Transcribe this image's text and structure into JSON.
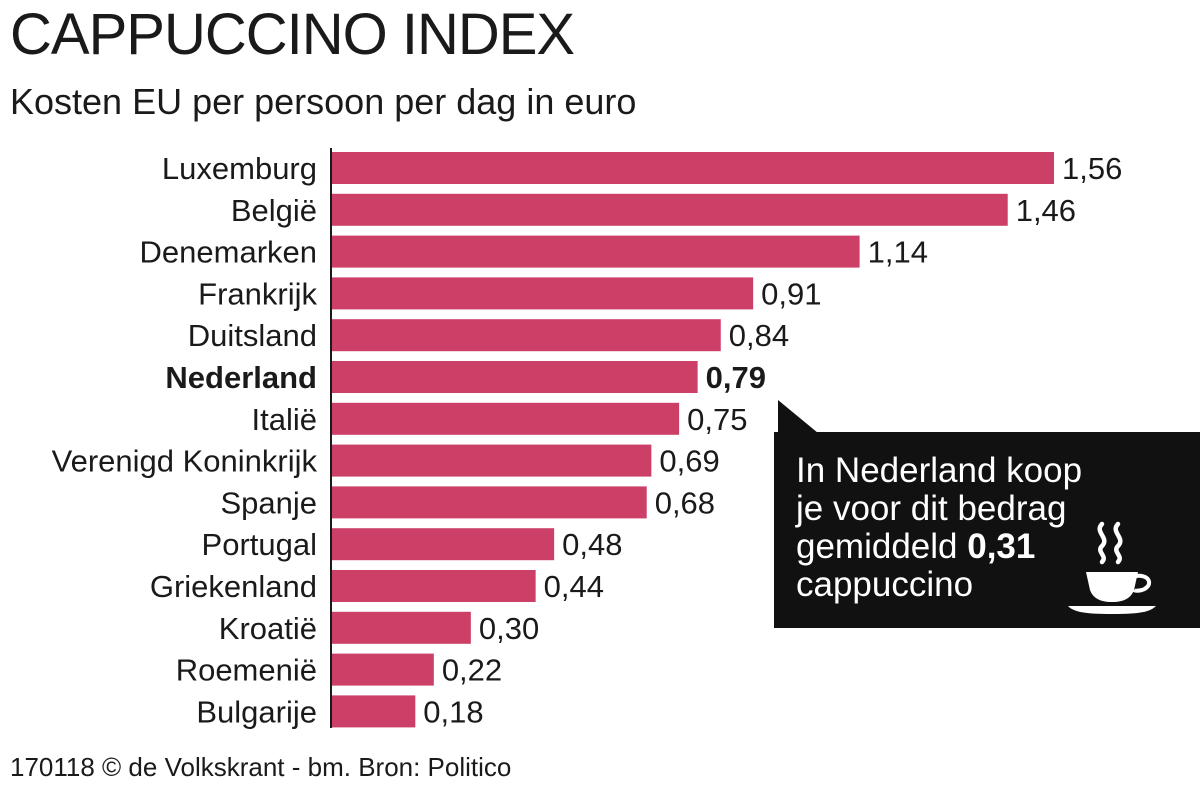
{
  "title": "CAPPUCCINO INDEX",
  "subtitle": "Kosten EU per persoon per dag in euro",
  "footer": "170118 © de Volkskrant - bm. Bron: Politico",
  "callout": {
    "line1": "In Nederland koop",
    "line2": "je voor dit bedrag",
    "line3_prefix": "gemiddeld ",
    "line3_value": "0,31",
    "line4": "cappuccino",
    "icon": "coffee-cup-icon"
  },
  "colors": {
    "bar": "#cc4068",
    "callout_bg": "#111111",
    "text": "#1a1a1a"
  },
  "chart_data": {
    "type": "bar",
    "orientation": "horizontal",
    "title": "CAPPUCCINO INDEX",
    "subtitle": "Kosten EU per persoon per dag in euro",
    "categories": [
      "Luxemburg",
      "België",
      "Denemarken",
      "Frankrijk",
      "Duitsland",
      "Nederland",
      "Italië",
      "Verenigd Koninkrijk",
      "Spanje",
      "Portugal",
      "Griekenland",
      "Kroatië",
      "Roemenië",
      "Bulgarije"
    ],
    "values": [
      1.56,
      1.46,
      1.14,
      0.91,
      0.84,
      0.79,
      0.75,
      0.69,
      0.68,
      0.48,
      0.44,
      0.3,
      0.22,
      0.18
    ],
    "value_labels": [
      "1,56",
      "1,46",
      "1,14",
      "0,91",
      "0,84",
      "0,79",
      "0,75",
      "0,69",
      "0,68",
      "0,48",
      "0,44",
      "0,30",
      "0,22",
      "0,18"
    ],
    "highlight": "Nederland",
    "grid": false,
    "legend": "none"
  }
}
